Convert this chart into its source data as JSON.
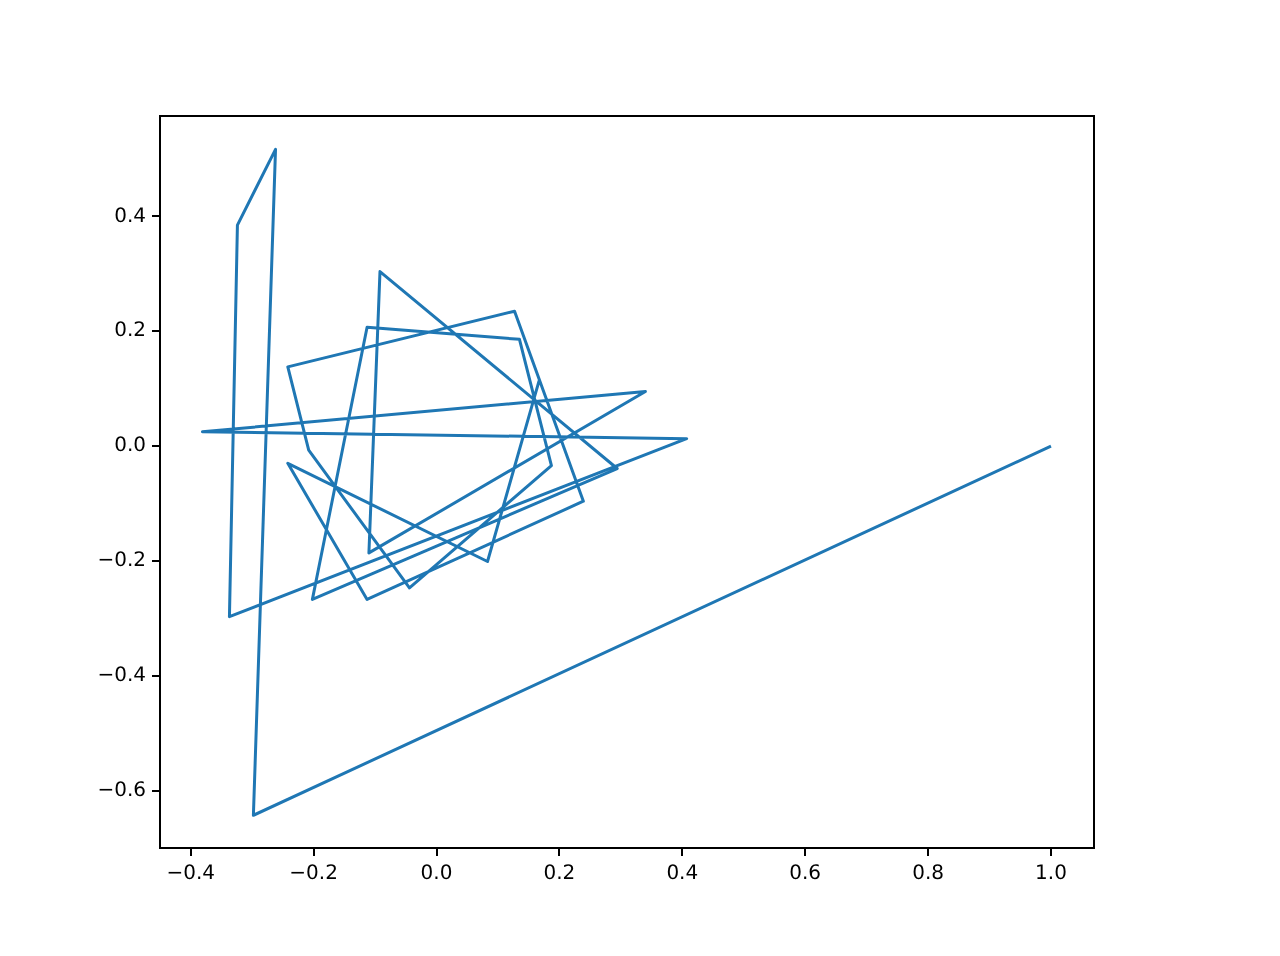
{
  "chart_data": {
    "type": "line",
    "x": [
      1.0,
      -0.298,
      -0.262,
      -0.324,
      -0.337,
      0.407,
      -0.381,
      0.34,
      -0.11,
      -0.092,
      0.294,
      -0.202,
      -0.113,
      0.135,
      0.187,
      -0.044,
      -0.208,
      -0.242,
      0.127,
      0.239,
      -0.113,
      -0.242,
      0.083,
      0.167
    ],
    "series": [
      {
        "color": "#1f77b4",
        "values": [
          0.0,
          -0.643,
          0.517,
          0.385,
          -0.297,
          0.013,
          0.025,
          0.095,
          -0.186,
          0.304,
          -0.039,
          -0.267,
          0.207,
          0.186,
          -0.034,
          -0.247,
          -0.007,
          0.138,
          0.235,
          -0.096,
          -0.267,
          -0.03,
          -0.201,
          0.114
        ]
      }
    ],
    "xlim": [
      -0.45,
      1.07
    ],
    "ylim": [
      -0.7,
      0.575
    ],
    "xticks": [
      {
        "value": -0.4,
        "label": "−0.4"
      },
      {
        "value": -0.2,
        "label": "−0.2"
      },
      {
        "value": 0,
        "label": "0.0"
      },
      {
        "value": 0.2,
        "label": "0.2"
      },
      {
        "value": 0.4,
        "label": "0.4"
      },
      {
        "value": 0.6,
        "label": "0.6"
      },
      {
        "value": 0.8,
        "label": "0.8"
      },
      {
        "value": 1,
        "label": "1.0"
      }
    ],
    "yticks": [
      {
        "value": -0.6,
        "label": "−0.6"
      },
      {
        "value": -0.4,
        "label": "−0.4"
      },
      {
        "value": -0.2,
        "label": "−0.2"
      },
      {
        "value": 0,
        "label": "0.0"
      },
      {
        "value": 0.2,
        "label": "0.2"
      },
      {
        "value": 0.4,
        "label": "0.4"
      }
    ],
    "grid": false,
    "legend": false,
    "marker": "none",
    "line_style": "solid"
  }
}
